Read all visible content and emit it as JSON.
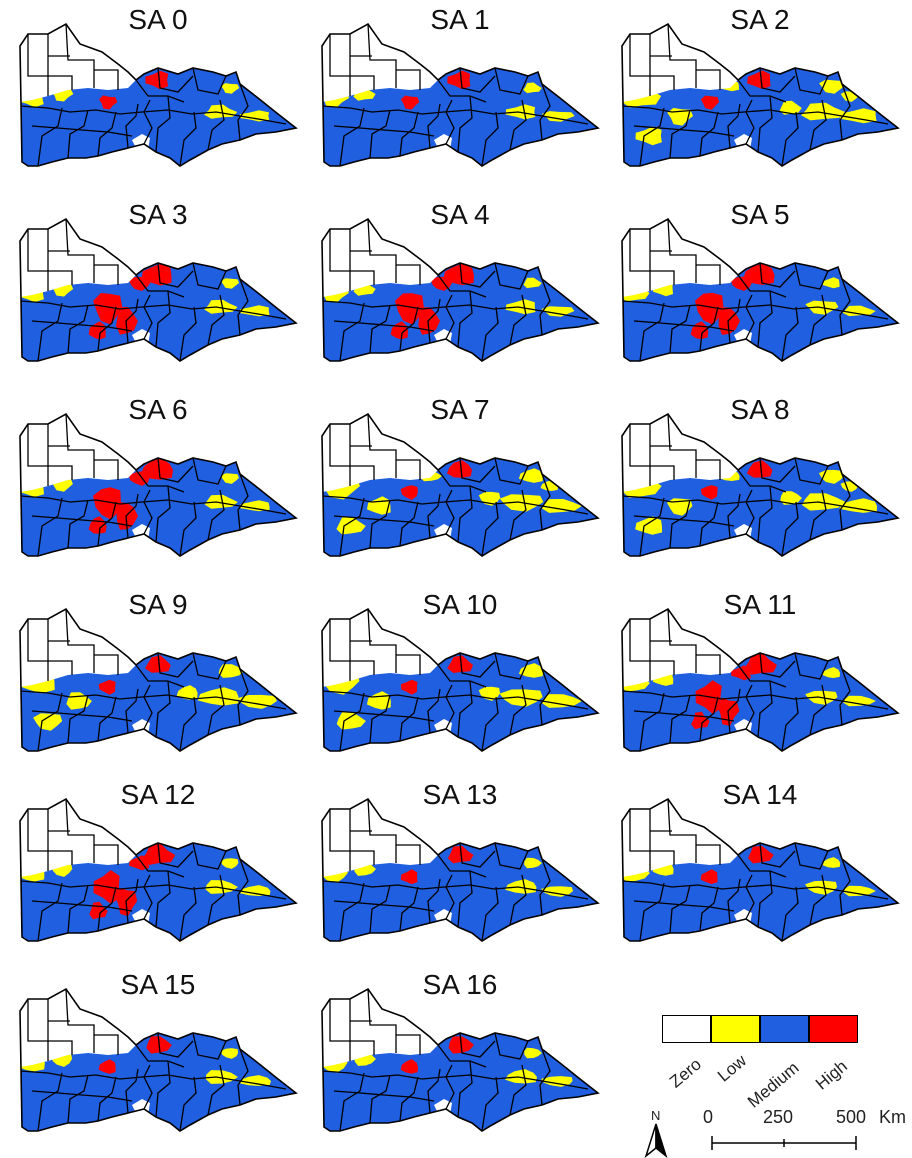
{
  "panels": [
    {
      "title": "SA 0",
      "scheme": 0
    },
    {
      "title": "SA 1",
      "scheme": 1
    },
    {
      "title": "SA 2",
      "scheme": 2
    },
    {
      "title": "SA 3",
      "scheme": 3
    },
    {
      "title": "SA 4",
      "scheme": 4
    },
    {
      "title": "SA 5",
      "scheme": 5
    },
    {
      "title": "SA 6",
      "scheme": 6
    },
    {
      "title": "SA 7",
      "scheme": 7
    },
    {
      "title": "SA 8",
      "scheme": 8
    },
    {
      "title": "SA 9",
      "scheme": 9
    },
    {
      "title": "SA 10",
      "scheme": 10
    },
    {
      "title": "SA 11",
      "scheme": 11
    },
    {
      "title": "SA 12",
      "scheme": 12
    },
    {
      "title": "SA 13",
      "scheme": 13
    },
    {
      "title": "SA 14",
      "scheme": 14
    },
    {
      "title": "SA 15",
      "scheme": 15
    },
    {
      "title": "SA 16",
      "scheme": 16
    }
  ],
  "legend": {
    "categories": [
      {
        "label": "Zero",
        "color": "#ffffff"
      },
      {
        "label": "Low",
        "color": "#ffff00"
      },
      {
        "label": "Medium",
        "color": "#1f5fe0"
      },
      {
        "label": "High",
        "color": "#ff0000"
      }
    ]
  },
  "north_arrow": {
    "label": "N",
    "icon": "north-arrow-icon"
  },
  "scale_bar": {
    "ticks": [
      "0",
      "250",
      "500"
    ],
    "unit": "Km"
  }
}
